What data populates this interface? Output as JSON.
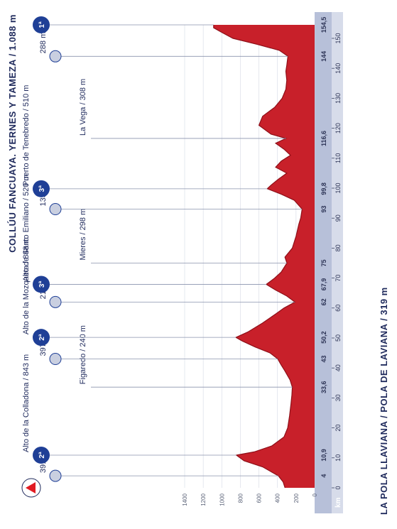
{
  "title_start": "LA POLA LLAVIANA / POLA DE LAVIANA / 319 m",
  "title_end": "COLLÚU FANCUAYA. YERNES Y TAMEZA / 1.088 m",
  "colors": {
    "profile": "#c8202a",
    "profile_dark": "#8e0f18",
    "axis_band": "#b7c0d9",
    "badge": "#1f3f96",
    "minor_badge": "#c9cfe0",
    "start_marker": "#e11b22"
  },
  "chart_data": {
    "type": "area",
    "xlabel": "km",
    "ylabel": "",
    "xlim": [
      0,
      154.5
    ],
    "ylim": [
      0,
      1400
    ],
    "x_ticks": [
      0,
      10,
      20,
      30,
      40,
      50,
      60,
      70,
      80,
      90,
      100,
      110,
      120,
      130,
      140,
      150
    ],
    "y_ticks": [
      0,
      200,
      400,
      600,
      800,
      1000,
      1200,
      1400
    ],
    "x": [
      0,
      2,
      4,
      7,
      9,
      10.9,
      12,
      14,
      17,
      20,
      24,
      28,
      31,
      33.6,
      36,
      39,
      41,
      43,
      45,
      47,
      49,
      50.2,
      52,
      55,
      58,
      60,
      62,
      64,
      66,
      67.9,
      70,
      72,
      75,
      77,
      80,
      84,
      88,
      90,
      93,
      96,
      98,
      99.8,
      101,
      103,
      105,
      107,
      109,
      111,
      113,
      115,
      116.6,
      118,
      121,
      124,
      127,
      130,
      133,
      136,
      139,
      141,
      144,
      146,
      148,
      150,
      152,
      153.5,
      154.5
    ],
    "values": [
      319,
      340,
      391,
      560,
      760,
      843,
      650,
      460,
      330,
      290,
      270,
      255,
      245,
      240,
      265,
      320,
      360,
      397,
      480,
      640,
      780,
      848,
      720,
      560,
      420,
      330,
      212,
      300,
      420,
      520,
      430,
      360,
      298,
      320,
      240,
      200,
      170,
      150,
      135,
      220,
      360,
      510,
      470,
      390,
      300,
      420,
      360,
      260,
      330,
      420,
      308,
      470,
      600,
      560,
      430,
      350,
      310,
      300,
      310,
      300,
      288,
      380,
      620,
      880,
      1000,
      1088,
      1088
    ]
  },
  "x_highlight_ticks": [
    "4",
    "10,9",
    "33,6",
    "43",
    "50,2",
    "62",
    "67,9",
    "75",
    "93",
    "99,8",
    "116,6",
    "144",
    "154,5"
  ],
  "points": [
    {
      "km": 4,
      "tick": "4",
      "alt": 391,
      "label": "391 m",
      "type": "minor"
    },
    {
      "km": 10.9,
      "tick": "10,9",
      "alt": 843,
      "label": "Alto de la Colladona / 843 m",
      "type": "climb",
      "cat": "2ª"
    },
    {
      "km": 33.6,
      "tick": "33,6",
      "alt": 240,
      "label": "Figaredo / 240 m",
      "type": "town"
    },
    {
      "km": 43,
      "tick": "43",
      "alt": 397,
      "label": "397 m",
      "type": "minor"
    },
    {
      "km": 50.2,
      "tick": "50,2",
      "alt": 848,
      "label": "Alto de la Mozqueta / 848 m",
      "type": "climb",
      "cat": "2ª"
    },
    {
      "km": 62,
      "tick": "62",
      "alt": 212,
      "label": "212 m",
      "type": "minor"
    },
    {
      "km": 67.9,
      "tick": "67,9",
      "alt": 520,
      "label": "Alto de Santo Emiliano / 520 m",
      "type": "climb",
      "cat": "3ª"
    },
    {
      "km": 75,
      "tick": "75",
      "alt": 298,
      "label": "Mieres / 298 m",
      "type": "town"
    },
    {
      "km": 93,
      "tick": "93",
      "alt": 135,
      "label": "135 m",
      "type": "minor"
    },
    {
      "km": 99.8,
      "tick": "99,8",
      "alt": 510,
      "label": "Puerto de Tenebredo / 510 m",
      "type": "climb",
      "cat": "3ª"
    },
    {
      "km": 116.6,
      "tick": "116,6",
      "alt": 308,
      "label": "La Vega / 308 m",
      "type": "town"
    },
    {
      "km": 144,
      "tick": "144",
      "alt": 288,
      "label": "288 m",
      "type": "minor"
    },
    {
      "km": 154.5,
      "tick": "154,5",
      "alt": 1088,
      "label": "",
      "type": "finish",
      "cat": "1ª"
    }
  ]
}
